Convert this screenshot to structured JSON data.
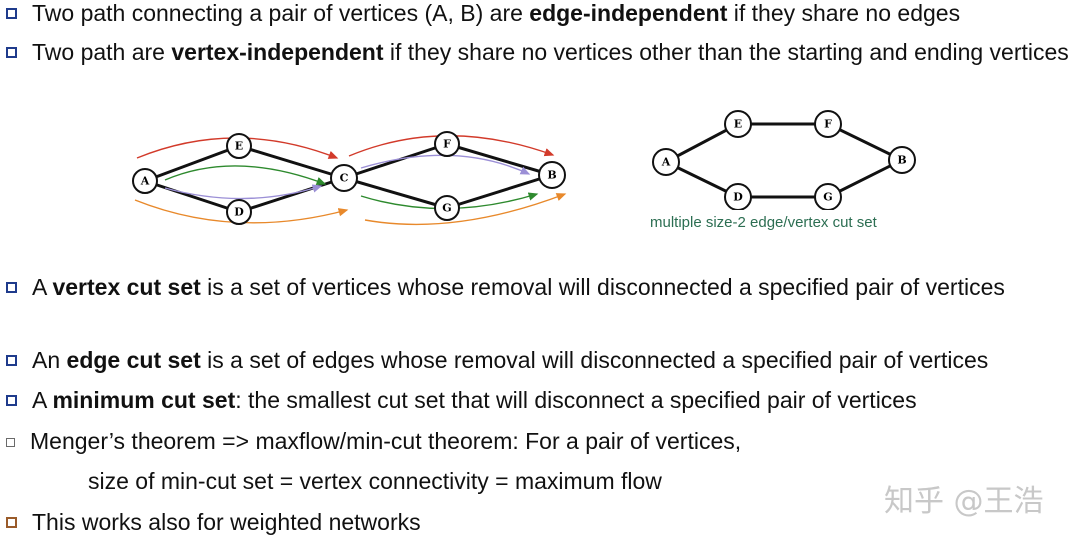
{
  "bullets": [
    {
      "pre": "Two path connecting a pair of vertices (A, B) are ",
      "bold": "edge-independent",
      "post": " if they share no edges"
    },
    {
      "pre": "Two path are ",
      "bold": "vertex-independent",
      "post": " if they share no vertices other than the starting and ending vertices"
    },
    {
      "pre": "A ",
      "bold": "vertex cut set",
      "post": " is a set of vertices whose removal will disconnected a specified pair of vertices"
    },
    {
      "pre": "An ",
      "bold": "edge cut set",
      "post": " is a set of edges whose removal will disconnected a specified pair of vertices"
    },
    {
      "pre": "A ",
      "bold": "minimum cut set",
      "post": ": the smallest cut set that will disconnect a specified pair of vertices"
    },
    {
      "text": "Menger’s theorem => maxflow/min-cut theorem: For a pair of vertices,"
    },
    {
      "text": "This works also for weighted networks"
    }
  ],
  "indent_line": "size of min-cut set = vertex connectivity = maximum flow",
  "graph_left": {
    "nodes": [
      "A",
      "E",
      "D",
      "C",
      "F",
      "G",
      "B"
    ]
  },
  "graph_right": {
    "nodes": [
      "A",
      "E",
      "F",
      "B",
      "D",
      "G"
    ],
    "caption": "multiple size-2 edge/vertex cut set"
  },
  "watermark": "知乎 @王浩",
  "colors": {
    "bullet_box": "#1f3b8c",
    "bullet_box_last": "#9a5b2a",
    "caption": "#2c6e52",
    "arrow_red": "#d23a2a",
    "arrow_green": "#2e8a2e",
    "arrow_orange": "#e8892b",
    "arrow_purple": "#9b8fd6"
  }
}
